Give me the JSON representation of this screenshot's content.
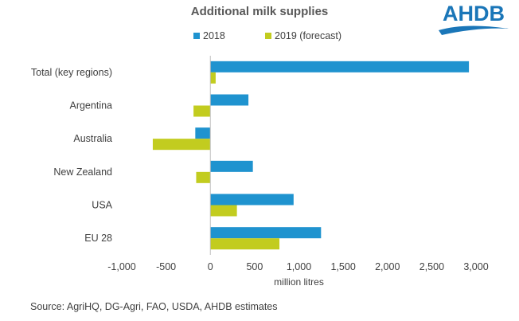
{
  "logo": {
    "text": "AHDB",
    "color": "#1a76b8"
  },
  "chart_data": {
    "type": "bar",
    "orientation": "horizontal",
    "title": "Additional milk supplies",
    "xlabel": "million litres",
    "ylabel": "",
    "categories": [
      "Total (key regions)",
      "Argentina",
      "Australia",
      "New Zealand",
      "USA",
      "EU 28"
    ],
    "series": [
      {
        "name": "2018",
        "color": "#1f93cf",
        "values": [
          2920,
          430,
          -170,
          480,
          940,
          1250
        ]
      },
      {
        "name": "2019 (forecast)",
        "color": "#c2cc1f",
        "values": [
          60,
          -190,
          -650,
          -160,
          300,
          780
        ]
      }
    ],
    "xlim": [
      -1000,
      3000
    ],
    "xticks": [
      -1000,
      -500,
      0,
      500,
      1000,
      1500,
      2000,
      2500,
      3000
    ],
    "xtick_labels": [
      "-1,000",
      "-500",
      "0",
      "500",
      "1,000",
      "1,500",
      "2,000",
      "2,500",
      "3,000"
    ],
    "grid": false,
    "legend_position": "top"
  },
  "source": "Source: AgriHQ, DG-Agri, FAO, USDA, AHDB estimates"
}
